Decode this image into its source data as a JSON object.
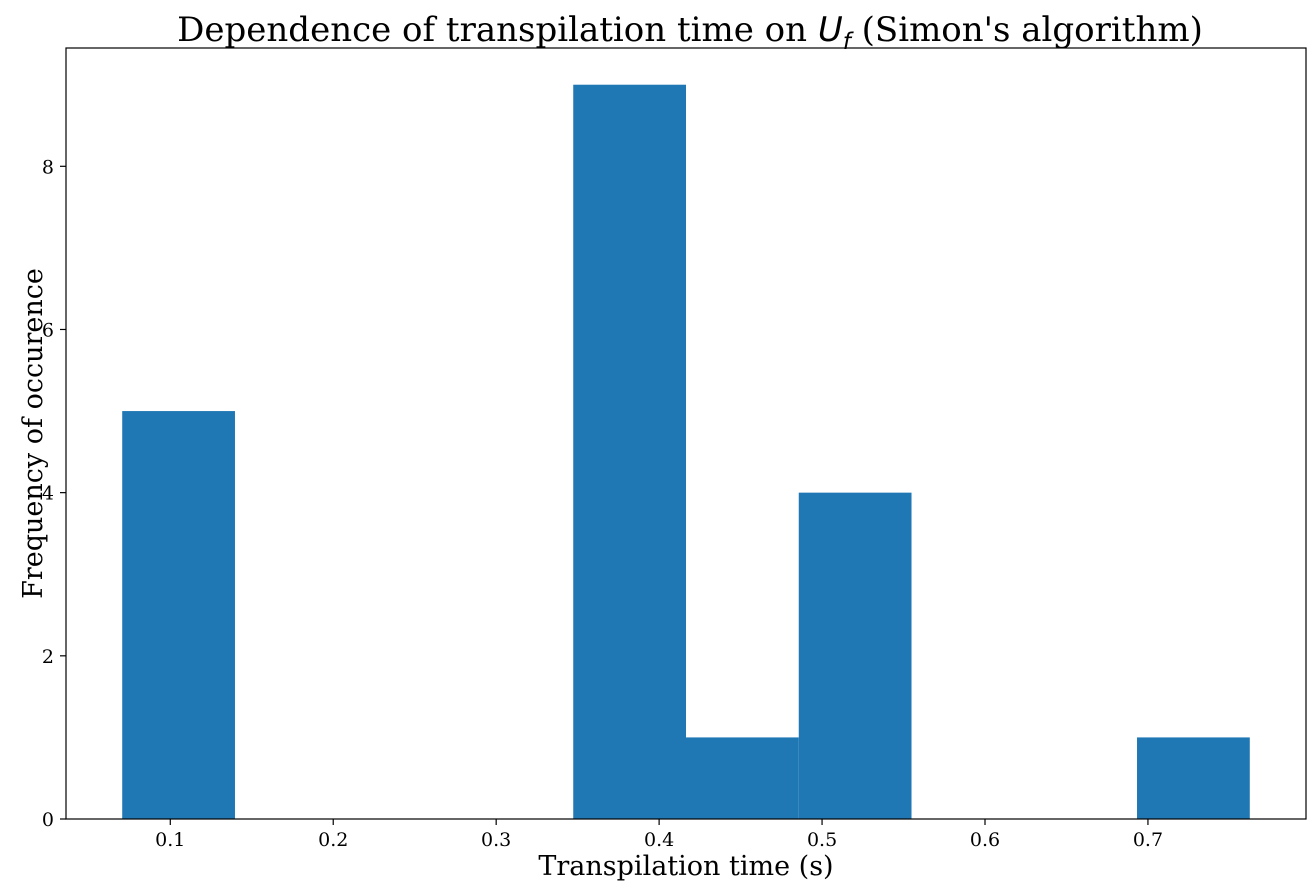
{
  "chart_data": {
    "type": "bar",
    "title": {
      "prefix": "Dependence of transpilation time on ",
      "math_main": "U",
      "math_sub": "f",
      "suffix": " (Simon's algorithm)"
    },
    "xlabel": "Transpilation time (s)",
    "ylabel": "Frequency of occurence",
    "bins": [
      {
        "start": 0.0705,
        "end": 0.1397,
        "count": 5
      },
      {
        "start": 0.1397,
        "end": 0.2089,
        "count": 0
      },
      {
        "start": 0.2089,
        "end": 0.2781,
        "count": 0
      },
      {
        "start": 0.2781,
        "end": 0.3473,
        "count": 0
      },
      {
        "start": 0.3473,
        "end": 0.4165,
        "count": 9
      },
      {
        "start": 0.4165,
        "end": 0.4857,
        "count": 1
      },
      {
        "start": 0.4857,
        "end": 0.5549,
        "count": 4
      },
      {
        "start": 0.5549,
        "end": 0.6241,
        "count": 0
      },
      {
        "start": 0.6241,
        "end": 0.6933,
        "count": 0
      },
      {
        "start": 0.6933,
        "end": 0.7625,
        "count": 1
      }
    ],
    "xlim": [
      0.036,
      0.797
    ],
    "ylim": [
      0,
      9.45
    ],
    "xticks": [
      0.1,
      0.2,
      0.3,
      0.4,
      0.5,
      0.6,
      0.7
    ],
    "xtick_labels": [
      "0.1",
      "0.2",
      "0.3",
      "0.4",
      "0.5",
      "0.6",
      "0.7"
    ],
    "yticks": [
      0,
      2,
      4,
      6,
      8
    ],
    "ytick_labels": [
      "0",
      "2",
      "4",
      "6",
      "8"
    ],
    "bar_color": "#1f77b4",
    "grid": false,
    "legend": "none"
  }
}
